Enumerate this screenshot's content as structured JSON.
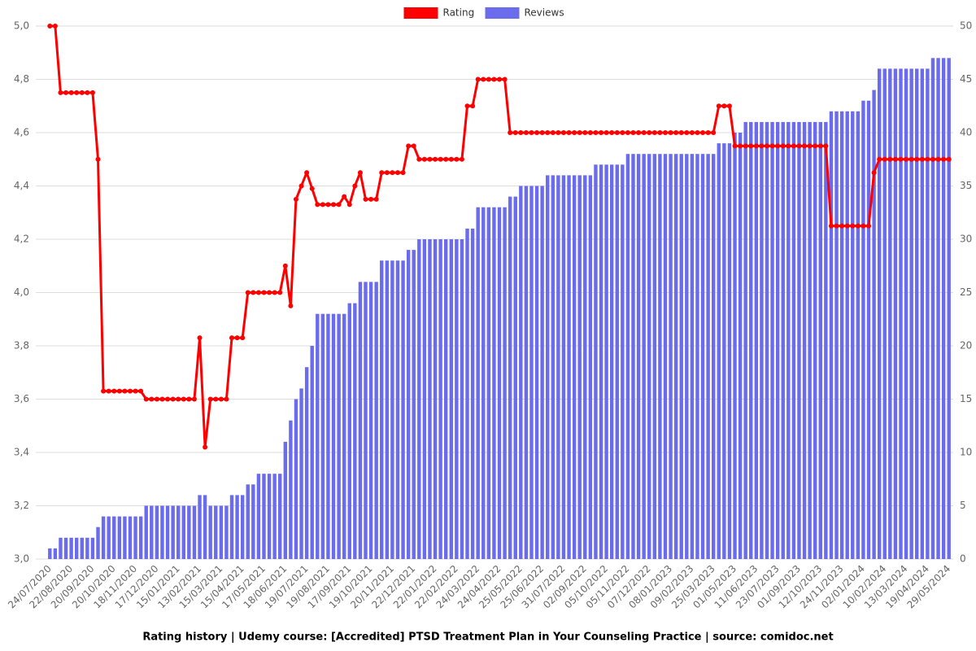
{
  "chart_data": {
    "type": "combo",
    "title": "Rating history | Udemy course: [Accredited] PTSD Treatment Plan in Your Counseling Practice | source: comidoc.net",
    "categories": [
      "24/07/2020",
      null,
      null,
      null,
      "22/08/2020",
      null,
      null,
      null,
      "20/09/2020",
      null,
      null,
      null,
      "20/10/2020",
      null,
      null,
      null,
      "18/11/2020",
      null,
      null,
      null,
      "17/12/2020",
      null,
      null,
      null,
      "15/01/2021",
      null,
      null,
      null,
      "13/02/2021",
      null,
      null,
      null,
      "15/03/2021",
      null,
      null,
      null,
      "15/04/2021",
      null,
      null,
      null,
      "17/05/2021",
      null,
      null,
      null,
      "18/06/2021",
      null,
      null,
      null,
      "19/07/2021",
      null,
      null,
      null,
      "19/08/2021",
      null,
      null,
      null,
      "17/09/2021",
      null,
      null,
      null,
      "19/10/2021",
      null,
      null,
      null,
      "20/11/2021",
      null,
      null,
      null,
      "22/12/2021",
      null,
      null,
      null,
      "22/01/2022",
      null,
      null,
      null,
      "22/02/2022",
      null,
      null,
      null,
      "24/03/2022",
      null,
      null,
      null,
      "24/04/2022",
      null,
      null,
      null,
      "25/05/2022",
      null,
      null,
      null,
      "25/06/2022",
      null,
      null,
      null,
      "31/07/2022",
      null,
      null,
      null,
      "02/09/2022",
      null,
      null,
      null,
      "05/10/2022",
      null,
      null,
      null,
      "05/11/2022",
      null,
      null,
      null,
      "07/12/2022",
      null,
      null,
      null,
      "08/01/2023",
      null,
      null,
      null,
      "09/02/2023",
      null,
      null,
      null,
      "25/03/2023",
      null,
      null,
      null,
      "01/05/2023",
      null,
      null,
      null,
      "11/06/2023",
      null,
      null,
      null,
      "23/07/2023",
      null,
      null,
      null,
      "01/09/2023",
      null,
      null,
      null,
      "12/10/2023",
      null,
      null,
      null,
      "24/11/2023",
      null,
      null,
      null,
      "02/01/2024",
      null,
      null,
      null,
      "10/02/2024",
      null,
      null,
      null,
      "13/03/2024",
      null,
      null,
      null,
      "19/04/2024",
      null,
      null,
      null,
      "29/05/2024"
    ],
    "series": [
      {
        "name": "Rating",
        "type": "line",
        "color": "#ff0000",
        "values": [
          5,
          5,
          4.75,
          4.75,
          4.75,
          4.75,
          4.75,
          4.75,
          4.75,
          4.5,
          3.63,
          3.63,
          3.63,
          3.63,
          3.63,
          3.63,
          3.63,
          3.63,
          3.6,
          3.6,
          3.6,
          3.6,
          3.6,
          3.6,
          3.6,
          3.6,
          3.6,
          3.6,
          3.83,
          3.42,
          3.6,
          3.6,
          3.6,
          3.6,
          3.83,
          3.83,
          3.83,
          4,
          4,
          4,
          4,
          4,
          4,
          4,
          4.1,
          3.95,
          4.35,
          4.4,
          4.45,
          4.39,
          4.33,
          4.33,
          4.33,
          4.33,
          4.33,
          4.36,
          4.33,
          4.4,
          4.45,
          4.35,
          4.35,
          4.35,
          4.45,
          4.45,
          4.45,
          4.45,
          4.45,
          4.55,
          4.55,
          4.5,
          4.5,
          4.5,
          4.5,
          4.5,
          4.5,
          4.5,
          4.5,
          4.5,
          4.7,
          4.7,
          4.8,
          4.8,
          4.8,
          4.8,
          4.8,
          4.8,
          4.6,
          4.6,
          4.6,
          4.6,
          4.6,
          4.6,
          4.6,
          4.6,
          4.6,
          4.6,
          4.6,
          4.6,
          4.6,
          4.6,
          4.6,
          4.6,
          4.6,
          4.6,
          4.6,
          4.6,
          4.6,
          4.6,
          4.6,
          4.6,
          4.6,
          4.6,
          4.6,
          4.6,
          4.6,
          4.6,
          4.6,
          4.6,
          4.6,
          4.6,
          4.6,
          4.6,
          4.6,
          4.6,
          4.6,
          4.7,
          4.7,
          4.7,
          4.55,
          4.55,
          4.55,
          4.55,
          4.55,
          4.55,
          4.55,
          4.55,
          4.55,
          4.55,
          4.55,
          4.55,
          4.55,
          4.55,
          4.55,
          4.55,
          4.55,
          4.55,
          4.25,
          4.25,
          4.25,
          4.25,
          4.25,
          4.25,
          4.25,
          4.25,
          4.45,
          4.5,
          4.5,
          4.5,
          4.5,
          4.5,
          4.5,
          4.5,
          4.5,
          4.5,
          4.5,
          4.5,
          4.5,
          4.5,
          4.5
        ]
      },
      {
        "name": "Reviews",
        "type": "bar",
        "axis": "y2",
        "color": "#6b6bee",
        "values": [
          1,
          1,
          2,
          2,
          2,
          2,
          2,
          2,
          2,
          3,
          4,
          4,
          4,
          4,
          4,
          4,
          4,
          4,
          5,
          5,
          5,
          5,
          5,
          5,
          5,
          5,
          5,
          5,
          6,
          6,
          5,
          5,
          5,
          5,
          6,
          6,
          6,
          7,
          7,
          8,
          8,
          8,
          8,
          8,
          11,
          13,
          15,
          16,
          18,
          20,
          23,
          23,
          23,
          23,
          23,
          23,
          24,
          24,
          26,
          26,
          26,
          26,
          28,
          28,
          28,
          28,
          28,
          29,
          29,
          30,
          30,
          30,
          30,
          30,
          30,
          30,
          30,
          30,
          31,
          31,
          33,
          33,
          33,
          33,
          33,
          33,
          34,
          34,
          35,
          35,
          35,
          35,
          35,
          36,
          36,
          36,
          36,
          36,
          36,
          36,
          36,
          36,
          37,
          37,
          37,
          37,
          37,
          37,
          38,
          38,
          38,
          38,
          38,
          38,
          38,
          38,
          38,
          38,
          38,
          38,
          38,
          38,
          38,
          38,
          38,
          39,
          39,
          39,
          40,
          40,
          41,
          41,
          41,
          41,
          41,
          41,
          41,
          41,
          41,
          41,
          41,
          41,
          41,
          41,
          41,
          41,
          42,
          42,
          42,
          42,
          42,
          42,
          43,
          43,
          44,
          46,
          46,
          46,
          46,
          46,
          46,
          46,
          46,
          46,
          46,
          47,
          47,
          47,
          47
        ]
      }
    ],
    "ylim": [
      3,
      5
    ],
    "yticks": [
      {
        "value": 3,
        "label": "3,0"
      },
      {
        "value": 3.2,
        "label": "3,2"
      },
      {
        "value": 3.4,
        "label": "3,4"
      },
      {
        "value": 3.6,
        "label": "3,6"
      },
      {
        "value": 3.8,
        "label": "3,8"
      },
      {
        "value": 4,
        "label": "4,0"
      },
      {
        "value": 4.2,
        "label": "4,2"
      },
      {
        "value": 4.4,
        "label": "4,4"
      },
      {
        "value": 4.6,
        "label": "4,6"
      },
      {
        "value": 4.8,
        "label": "4,8"
      },
      {
        "value": 5,
        "label": "5,0"
      }
    ],
    "y2lim": [
      0,
      50
    ],
    "y2ticks": [
      0,
      5,
      10,
      15,
      20,
      25,
      30,
      35,
      40,
      45,
      50
    ],
    "grid": true,
    "legend": "top"
  }
}
